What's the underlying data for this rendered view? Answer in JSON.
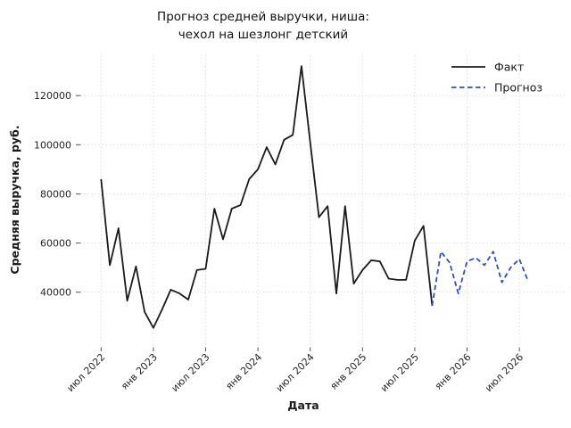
{
  "title": {
    "line1": "Прогноз средней выручки, ниша:",
    "line2": "чехол на шезлонг детский"
  },
  "axes": {
    "x_label": "Дата",
    "y_label": "Средняя выручка, руб."
  },
  "legend": {
    "items": [
      {
        "label": "Факт",
        "style": "solid",
        "color": "#1a1a1a"
      },
      {
        "label": "Прогноз",
        "style": "dashed",
        "color": "#2e4fc6"
      }
    ],
    "position": "upper right"
  },
  "colors": {
    "fact_line": "#1a1a1a",
    "forecast_line": "#2e4fc6",
    "gridline": "#d9d9d9",
    "tick": "#555555",
    "text": "#262626"
  },
  "chart_data": {
    "type": "line",
    "title": "Прогноз средней выручки, ниша: чехол на шезлонг детский",
    "xlabel": "Дата",
    "ylabel": "Средняя выручка, руб.",
    "grid": true,
    "legend_position": "upper right",
    "ylim": [
      18000,
      136000
    ],
    "y_ticks": [
      40000,
      60000,
      80000,
      100000,
      120000
    ],
    "x_tick_labels": [
      "июл 2022",
      "янв 2023",
      "июл 2023",
      "янв 2024",
      "июл 2024",
      "янв 2025",
      "июл 2025",
      "янв 2026",
      "июл 2026"
    ],
    "x_tick_positions": [
      0,
      6,
      12,
      18,
      24,
      30,
      36,
      42,
      48
    ],
    "series": [
      {
        "name": "Факт",
        "style": "solid",
        "color": "#1a1a1a",
        "start_index": 0,
        "months": [
          "июл 2022",
          "авг 2022",
          "сен 2022",
          "окт 2022",
          "ноя 2022",
          "дек 2022",
          "янв 2023",
          "фев 2023",
          "мар 2023",
          "апр 2023",
          "май 2023",
          "июн 2023",
          "июл 2023",
          "авг 2023",
          "сен 2023",
          "окт 2023",
          "ноя 2023",
          "дек 2023",
          "янв 2024",
          "фев 2024",
          "мар 2024",
          "апр 2024",
          "май 2024",
          "июн 2024",
          "июл 2024",
          "авг 2024",
          "сен 2024",
          "окт 2024",
          "ноя 2024",
          "дек 2024",
          "янв 2025",
          "фев 2025",
          "мар 2025",
          "апр 2025",
          "май 2025",
          "июн 2025",
          "июл 2025",
          "авг 2025",
          "сен 2025"
        ],
        "values": [
          86000,
          51000,
          66000,
          36500,
          50500,
          32000,
          25500,
          33000,
          41000,
          39500,
          37000,
          49000,
          49500,
          74000,
          61500,
          74000,
          75500,
          86000,
          90000,
          99000,
          92000,
          102000,
          104000,
          132000,
          101000,
          70500,
          75000,
          39500,
          75000,
          43500,
          49000,
          53000,
          52500,
          45500,
          45000,
          45000,
          61000,
          67000,
          34500
        ]
      },
      {
        "name": "Прогноз",
        "style": "dashed",
        "color": "#2e4fc6",
        "start_index": 38,
        "months": [
          "сен 2025",
          "окт 2025",
          "ноя 2025",
          "дек 2025",
          "янв 2026",
          "фев 2026",
          "мар 2026",
          "апр 2026",
          "май 2026",
          "июн 2026",
          "июл 2026",
          "авг 2026"
        ],
        "values": [
          34500,
          56500,
          52000,
          39500,
          52500,
          54000,
          51000,
          56500,
          44000,
          50000,
          53500,
          44500
        ]
      }
    ]
  }
}
